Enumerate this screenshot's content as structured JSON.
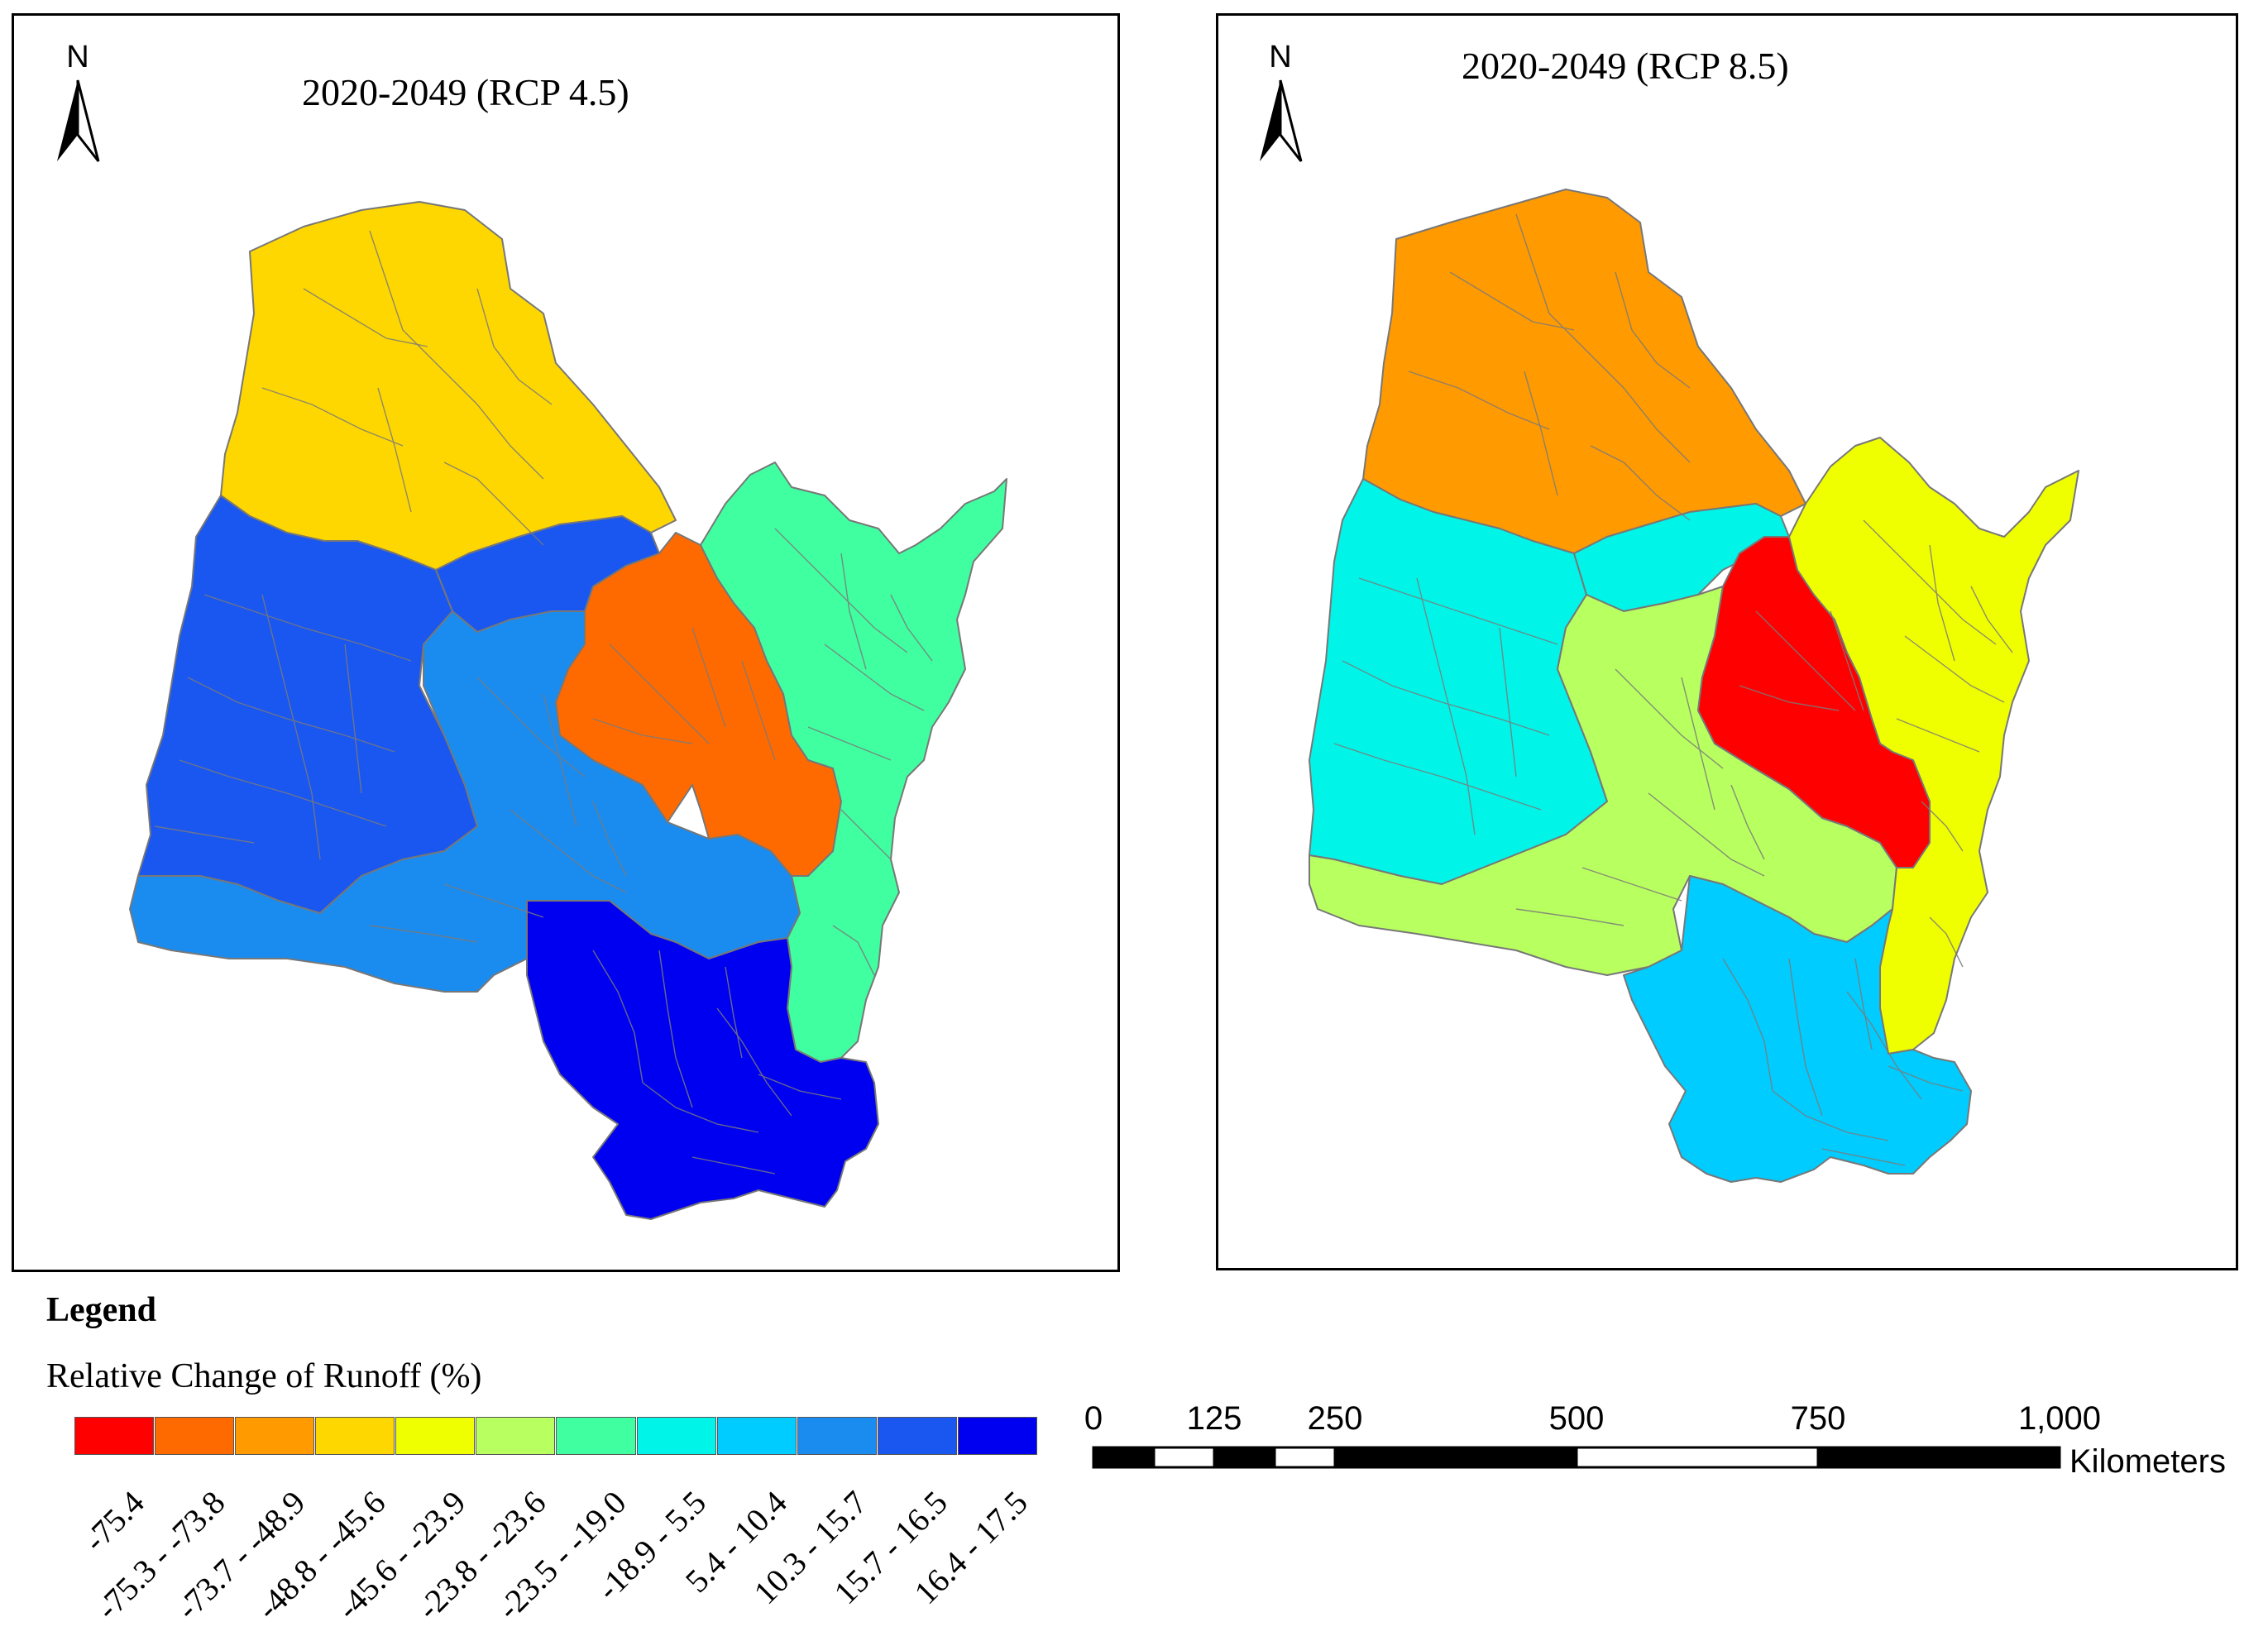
{
  "maps": [
    {
      "title": "2020-2049 (RCP 4.5)",
      "north_label": "N",
      "regions": [
        {
          "name": "north",
          "class": "-48.8 - -45.6",
          "color": "#FFD700"
        },
        {
          "name": "west",
          "class": "15.7 - 16.5",
          "color": "#1A56F0"
        },
        {
          "name": "central",
          "class": "10.3 - 15.7",
          "color": "#1A8CF0"
        },
        {
          "name": "central-east",
          "class": "-75.3 - -73.8",
          "color": "#FF6A00"
        },
        {
          "name": "east",
          "class": "-23.5 - -19.0",
          "color": "#40FFA0"
        },
        {
          "name": "south",
          "class": "16.4 - 17.5",
          "color": "#0000F0"
        }
      ]
    },
    {
      "title": "2020-2049 (RCP 8.5)",
      "north_label": "N",
      "regions": [
        {
          "name": "north",
          "class": "-73.7 - -48.9",
          "color": "#FF9A00"
        },
        {
          "name": "west",
          "class": "-18.9 - 5.5",
          "color": "#00F5E8"
        },
        {
          "name": "central",
          "class": "-23.8 - -23.6",
          "color": "#B8FF60"
        },
        {
          "name": "central-east",
          "class": "-75.4",
          "color": "#FF0000"
        },
        {
          "name": "east",
          "class": "-45.6 - -23.9",
          "color": "#F0FF00"
        },
        {
          "name": "south",
          "class": "5.4 - 10.4",
          "color": "#00CCFF"
        }
      ]
    }
  ],
  "legend": {
    "title": "Legend",
    "subtitle": "Relative Change of Runoff (%)",
    "classes": [
      {
        "label": "-75.4",
        "color": "#FF0000"
      },
      {
        "label": "-75.3 - -73.8",
        "color": "#FF6A00"
      },
      {
        "label": "-73.7 - -48.9",
        "color": "#FF9A00"
      },
      {
        "label": "-48.8 - -45.6",
        "color": "#FFD700"
      },
      {
        "label": "-45.6 - -23.9",
        "color": "#F0FF00"
      },
      {
        "label": "-23.8 - -23.6",
        "color": "#B8FF60"
      },
      {
        "label": "-23.5 - -19.0",
        "color": "#40FFA0"
      },
      {
        "label": "-18.9 - 5.5",
        "color": "#00F5E8"
      },
      {
        "label": "5.4 - 10.4",
        "color": "#00CCFF"
      },
      {
        "label": "10.3 - 15.7",
        "color": "#1A8CF0"
      },
      {
        "label": "15.7 - 16.5",
        "color": "#1A56F0"
      },
      {
        "label": "16.4 - 17.5",
        "color": "#0000F0"
      }
    ]
  },
  "scale_bar": {
    "ticks": [
      {
        "label": "0",
        "value": 0
      },
      {
        "label": "125",
        "value": 125
      },
      {
        "label": "250",
        "value": 250
      },
      {
        "label": "500",
        "value": 500
      },
      {
        "label": "750",
        "value": 750
      },
      {
        "label": "1,000",
        "value": 1000
      }
    ],
    "unit": "Kilometers",
    "max_value": 1000
  }
}
